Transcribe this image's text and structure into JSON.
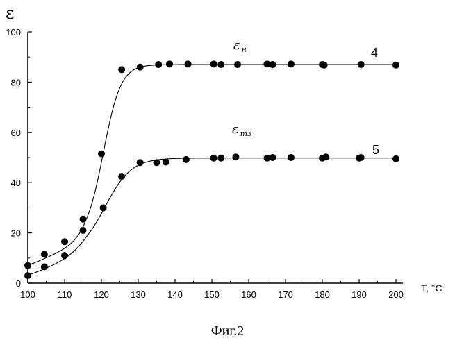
{
  "chart_data": {
    "type": "scatter",
    "ylabel": "ε",
    "xlabel": "T, °C",
    "xlim": [
      100,
      200
    ],
    "ylim": [
      0,
      100
    ],
    "x_ticks": [
      100,
      110,
      120,
      130,
      140,
      150,
      160,
      170,
      180,
      190,
      200
    ],
    "y_ticks": [
      0,
      20,
      40,
      60,
      80,
      100
    ],
    "grid": false,
    "series": [
      {
        "name": "4",
        "label_main": "ε",
        "label_sub": "н",
        "points": [
          [
            100,
            7
          ],
          [
            104.5,
            11.5
          ],
          [
            110,
            16.5
          ],
          [
            115,
            25.5
          ],
          [
            120,
            51.5
          ],
          [
            125.5,
            85
          ],
          [
            130.5,
            86
          ],
          [
            135.5,
            87
          ],
          [
            138.5,
            87.2
          ],
          [
            143.5,
            87.2
          ],
          [
            150.5,
            87.2
          ],
          [
            152.5,
            87
          ],
          [
            157,
            87
          ],
          [
            165,
            87.2
          ],
          [
            166.5,
            87
          ],
          [
            171.5,
            87.2
          ],
          [
            180,
            87
          ],
          [
            180.5,
            86.8
          ],
          [
            190.5,
            87
          ],
          [
            200,
            86.8
          ]
        ]
      },
      {
        "name": "5",
        "label_main": "ε",
        "label_sub": "тэ",
        "points": [
          [
            100,
            3
          ],
          [
            104.5,
            6.5
          ],
          [
            110,
            11
          ],
          [
            115,
            21
          ],
          [
            120.5,
            30
          ],
          [
            125.5,
            42.5
          ],
          [
            130.5,
            48
          ],
          [
            135,
            48
          ],
          [
            137.5,
            48.2
          ],
          [
            143,
            49.2
          ],
          [
            150.5,
            49.8
          ],
          [
            152.5,
            49.8
          ],
          [
            156.5,
            50.2
          ],
          [
            165,
            49.8
          ],
          [
            166.5,
            50
          ],
          [
            171.5,
            50
          ],
          [
            180,
            49.8
          ],
          [
            181,
            50.2
          ],
          [
            190,
            49.8
          ],
          [
            190.5,
            50
          ],
          [
            200,
            49.5
          ]
        ]
      }
    ]
  },
  "caption": "Фиг.2"
}
